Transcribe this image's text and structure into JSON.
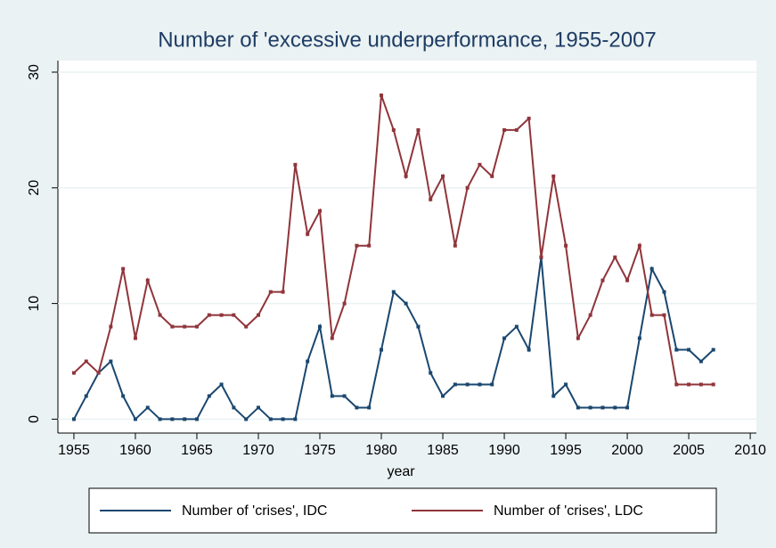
{
  "chart_data": {
    "type": "line",
    "title": "Number of 'excessive underperformance, 1955-2007",
    "x_label": "year",
    "x": [
      1955,
      1956,
      1957,
      1958,
      1959,
      1960,
      1961,
      1962,
      1963,
      1964,
      1965,
      1966,
      1967,
      1968,
      1969,
      1970,
      1971,
      1972,
      1973,
      1974,
      1975,
      1976,
      1977,
      1978,
      1979,
      1980,
      1981,
      1982,
      1983,
      1984,
      1985,
      1986,
      1987,
      1988,
      1989,
      1990,
      1991,
      1992,
      1993,
      1994,
      1995,
      1996,
      1997,
      1998,
      1999,
      2000,
      2001,
      2002,
      2003,
      2004,
      2005,
      2006,
      2007
    ],
    "series": [
      {
        "name": "Number of 'crises', IDC",
        "color": "#1a476f",
        "values": [
          0,
          2,
          4,
          5,
          2,
          0,
          1,
          0,
          0,
          0,
          0,
          2,
          3,
          1,
          0,
          1,
          0,
          0,
          0,
          5,
          8,
          2,
          2,
          1,
          1,
          6,
          11,
          10,
          8,
          4,
          2,
          3,
          3,
          3,
          3,
          7,
          8,
          6,
          14,
          2,
          3,
          1,
          1,
          1,
          1,
          1,
          7,
          13,
          11,
          6,
          6,
          5,
          6
        ]
      },
      {
        "name": "Number of 'crises', LDC",
        "color": "#90353b",
        "values": [
          4,
          5,
          4,
          8,
          13,
          7,
          12,
          9,
          8,
          8,
          8,
          9,
          9,
          9,
          8,
          9,
          11,
          11,
          22,
          16,
          18,
          7,
          10,
          15,
          15,
          28,
          25,
          21,
          25,
          19,
          21,
          15,
          20,
          22,
          21,
          25,
          25,
          26,
          14,
          21,
          15,
          7,
          9,
          12,
          14,
          12,
          15,
          9,
          9,
          3,
          3,
          3,
          3
        ]
      }
    ],
    "xlim": [
      1953.7,
      2010.5
    ],
    "ylim": [
      -1.2,
      31
    ],
    "xticks": [
      1955,
      1960,
      1965,
      1970,
      1975,
      1980,
      1985,
      1990,
      1995,
      2000,
      2005,
      2010
    ],
    "yticks": [
      0,
      10,
      20,
      30
    ],
    "grid": true,
    "legend": "bottom"
  }
}
